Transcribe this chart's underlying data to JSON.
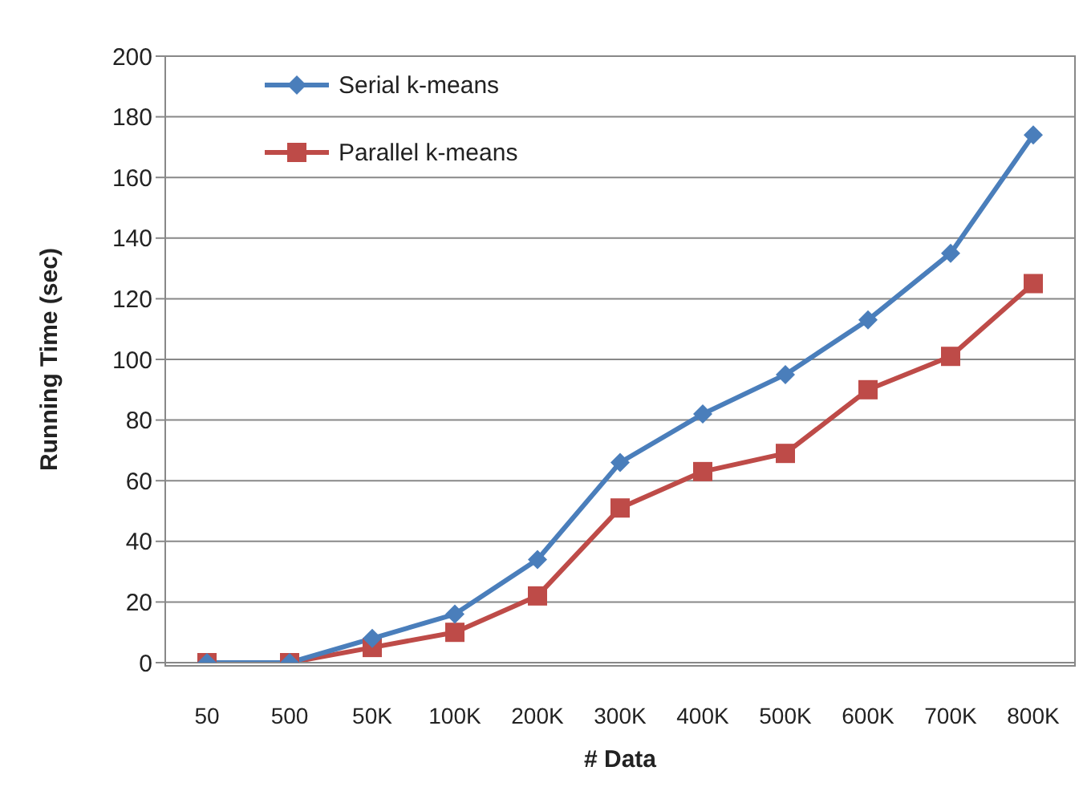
{
  "chart_data": {
    "type": "line",
    "xlabel": "# Data",
    "ylabel": "Running Time (sec)",
    "categories": [
      "50",
      "500",
      "50K",
      "100K",
      "200K",
      "300K",
      "400K",
      "500K",
      "600K",
      "700K",
      "800K"
    ],
    "series": [
      {
        "name": "Serial k-means",
        "color": "#4a7ebb",
        "marker": "diamond",
        "values": [
          0,
          0,
          8,
          16,
          34,
          66,
          82,
          95,
          113,
          135,
          174
        ]
      },
      {
        "name": "Parallel k-means",
        "color": "#be4b48",
        "marker": "square",
        "values": [
          0,
          0,
          5,
          10,
          22,
          51,
          63,
          69,
          90,
          101,
          125
        ]
      }
    ],
    "ylim": [
      0,
      200
    ],
    "yticks": [
      0,
      20,
      40,
      60,
      80,
      100,
      120,
      140,
      160,
      180,
      200
    ],
    "grid": "y",
    "legend": "top left"
  }
}
